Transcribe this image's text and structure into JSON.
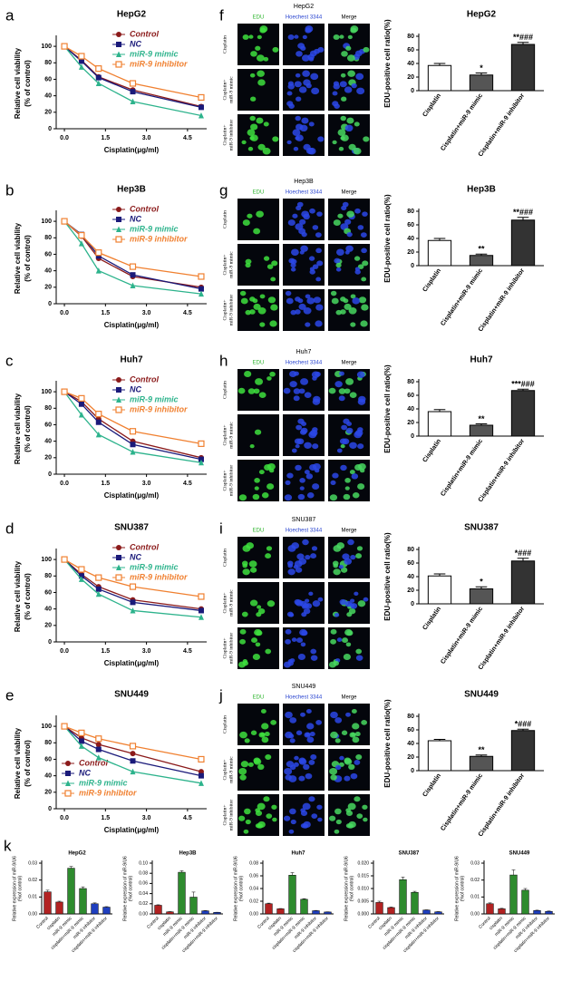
{
  "chart_data": [
    {
      "type": "line",
      "panel": "a",
      "title": "HepG2",
      "xlabel": "Cisplatin(μg/ml)",
      "ylabel": [
        "Relative cell viability",
        "(% of control)"
      ],
      "x": [
        0,
        0.625,
        1.25,
        2.5,
        5
      ],
      "xlim": [
        -0.3,
        5.2
      ],
      "xticks": [
        {
          "value": 0,
          "label": "0.0"
        },
        1.5,
        {
          "value": 3,
          "label": "3.0"
        },
        4.5
      ],
      "ylim": [
        0,
        110
      ],
      "yticks": [
        0,
        20,
        40,
        60,
        80,
        100
      ],
      "legend": "upper right",
      "series": [
        {
          "name": "Control",
          "color": "#8b1a1a",
          "marker": "circle",
          "values": [
            100,
            83,
            63,
            47,
            27
          ]
        },
        {
          "name": "NC",
          "color": "#1a1a7a",
          "marker": "square",
          "values": [
            100,
            82,
            62,
            45,
            26
          ]
        },
        {
          "name": "miR-9 mimic",
          "color": "#2db38c",
          "marker": "triangle",
          "values": [
            100,
            75,
            55,
            33,
            16
          ]
        },
        {
          "name": "miR-9 inhibitor",
          "color": "#f08030",
          "marker": "open-square",
          "values": [
            100,
            88,
            73,
            55,
            38
          ]
        }
      ]
    },
    {
      "type": "micrograph",
      "panel": "f",
      "title": "HepG2",
      "columns": [
        "EDU",
        "Hoechest 3344",
        "Merge"
      ],
      "rows": [
        [
          "Cisplatin"
        ],
        [
          "Cisplatin+",
          "miR-9 mimic"
        ],
        [
          "Cisplatin+",
          "miR-9 inhibitor"
        ]
      ]
    },
    {
      "type": "bar",
      "title": "HepG2",
      "ylabel": "EDU-positive cell ratio(%)",
      "categories": [
        "Cisplatin",
        "Cisplatin+miR-9 mimic",
        "Cisplatin+miR-9 inhibitor"
      ],
      "values": [
        37,
        23,
        68
      ],
      "errors": [
        3,
        3,
        3
      ],
      "annotations": [
        null,
        "*",
        "**###"
      ],
      "colors": [
        "#ffffff",
        "#555555",
        "#333333"
      ],
      "ylim": [
        0,
        80
      ],
      "yticks": [
        0,
        20,
        40,
        60,
        80
      ]
    },
    {
      "type": "line",
      "panel": "b",
      "title": "Hep3B",
      "xlabel": "Cisplatin(μg/ml)",
      "ylabel": [
        "Relative cell viability",
        "(% of control)"
      ],
      "x": [
        0,
        0.625,
        1.25,
        2.5,
        5
      ],
      "xlim": [
        -0.3,
        5.2
      ],
      "xticks": [
        {
          "value": 0,
          "label": "0.0"
        },
        1.5,
        {
          "value": 3,
          "label": "3.0"
        },
        4.5
      ],
      "ylim": [
        0,
        110
      ],
      "yticks": [
        0,
        20,
        40,
        60,
        80,
        100
      ],
      "legend": "upper right",
      "series": [
        {
          "name": "Control",
          "color": "#8b1a1a",
          "marker": "circle",
          "values": [
            100,
            82,
            55,
            33,
            20
          ]
        },
        {
          "name": "NC",
          "color": "#1a1a7a",
          "marker": "square",
          "values": [
            100,
            84,
            58,
            35,
            18
          ]
        },
        {
          "name": "miR-9 mimic",
          "color": "#2db38c",
          "marker": "triangle",
          "values": [
            100,
            73,
            40,
            22,
            12
          ]
        },
        {
          "name": "miR-9 inhibitor",
          "color": "#f08030",
          "marker": "open-square",
          "values": [
            100,
            83,
            62,
            45,
            33
          ]
        }
      ]
    },
    {
      "type": "micrograph",
      "panel": "g",
      "title": "Hep3B",
      "columns": [
        "EDU",
        "Hoechest 3344",
        "Merge"
      ],
      "rows": [
        [
          "Cisplatin"
        ],
        [
          "Cisplatin+",
          "miR-9 mimic"
        ],
        [
          "Cisplatin+",
          "miR-9 inhibitor"
        ]
      ]
    },
    {
      "type": "bar",
      "title": "Hep3B",
      "ylabel": "EDU-positive cell ratio(%)",
      "categories": [
        "Cisplatin",
        "Cisplatin+miR-9 mimic",
        "Cisplatin+miR-9 inhibitor"
      ],
      "values": [
        37,
        15,
        67
      ],
      "errors": [
        3,
        2,
        4
      ],
      "annotations": [
        null,
        "**",
        "**###"
      ],
      "colors": [
        "#ffffff",
        "#555555",
        "#333333"
      ],
      "ylim": [
        0,
        80
      ],
      "yticks": [
        0,
        20,
        40,
        60,
        80
      ]
    },
    {
      "type": "line",
      "panel": "c",
      "title": "Huh7",
      "xlabel": "Cisplatin(μg/ml)",
      "ylabel": [
        "Relative cell viability",
        "(% of control)"
      ],
      "x": [
        0,
        0.625,
        1.25,
        2.5,
        5
      ],
      "xlim": [
        -0.3,
        5.2
      ],
      "xticks": [
        {
          "value": 0,
          "label": "0.0"
        },
        1.5,
        {
          "value": 3,
          "label": "3.0"
        },
        4.5
      ],
      "ylim": [
        0,
        110
      ],
      "yticks": [
        0,
        20,
        40,
        60,
        80,
        100
      ],
      "legend": "upper right",
      "series": [
        {
          "name": "Control",
          "color": "#8b1a1a",
          "marker": "circle",
          "values": [
            100,
            88,
            67,
            40,
            20
          ]
        },
        {
          "name": "NC",
          "color": "#1a1a7a",
          "marker": "square",
          "values": [
            100,
            85,
            63,
            36,
            18
          ]
        },
        {
          "name": "miR-9 mimic",
          "color": "#2db38c",
          "marker": "triangle",
          "values": [
            100,
            72,
            48,
            27,
            14
          ]
        },
        {
          "name": "miR-9 inhibitor",
          "color": "#f08030",
          "marker": "open-square",
          "values": [
            100,
            92,
            73,
            52,
            37
          ]
        }
      ]
    },
    {
      "type": "micrograph",
      "panel": "h",
      "title": "Huh7",
      "columns": [
        "EDU",
        "Hoechest 3344",
        "Merge"
      ],
      "rows": [
        [
          "Cisplatin"
        ],
        [
          "Cisplatin+",
          "miR-9 mimic"
        ],
        [
          "Cisplatin+",
          "miR-9 inhibitor"
        ]
      ]
    },
    {
      "type": "bar",
      "title": "Huh7",
      "ylabel": "EDU-positive cell ratio(%)",
      "categories": [
        "Cisplatin",
        "Cisplatin+miR-9 mimic",
        "Cisplatin+miR-9 inhibitor"
      ],
      "values": [
        36,
        16,
        67
      ],
      "errors": [
        3,
        2,
        2
      ],
      "annotations": [
        null,
        "**",
        "***###"
      ],
      "colors": [
        "#ffffff",
        "#555555",
        "#333333"
      ],
      "ylim": [
        0,
        80
      ],
      "yticks": [
        0,
        20,
        40,
        60,
        80
      ]
    },
    {
      "type": "line",
      "panel": "d",
      "title": "SNU387",
      "xlabel": "Cisplatin(μg/ml)",
      "ylabel": [
        "Relative cell viability",
        "(% of control)"
      ],
      "x": [
        0,
        0.625,
        1.25,
        2.5,
        5
      ],
      "xlim": [
        -0.3,
        5.2
      ],
      "xticks": [
        {
          "value": 0,
          "label": "0.0"
        },
        1.5,
        {
          "value": 3,
          "label": "3.0"
        },
        4.5
      ],
      "ylim": [
        0,
        110
      ],
      "yticks": [
        0,
        20,
        40,
        60,
        80,
        100
      ],
      "legend": "upper right",
      "series": [
        {
          "name": "Control",
          "color": "#8b1a1a",
          "marker": "circle",
          "values": [
            100,
            82,
            67,
            51,
            40
          ]
        },
        {
          "name": "NC",
          "color": "#1a1a7a",
          "marker": "square",
          "values": [
            100,
            80,
            64,
            48,
            38
          ]
        },
        {
          "name": "miR-9 mimic",
          "color": "#2db38c",
          "marker": "triangle",
          "values": [
            100,
            76,
            58,
            38,
            30
          ]
        },
        {
          "name": "miR-9 inhibitor",
          "color": "#f08030",
          "marker": "open-square",
          "values": [
            100,
            88,
            78,
            67,
            55
          ]
        }
      ]
    },
    {
      "type": "micrograph",
      "panel": "i",
      "title": "SNU387",
      "columns": [
        "EDU",
        "Hoechest 3344",
        "Merge"
      ],
      "rows": [
        [
          "Cisplatin"
        ],
        [
          "Cisplatin+",
          "miR-9 mimic"
        ],
        [
          "Cisplatin+",
          "miR-9 inhibitor"
        ]
      ]
    },
    {
      "type": "bar",
      "title": "SNU387",
      "ylabel": "EDU-positive cell ratio(%)",
      "categories": [
        "Cisplatin",
        "Cisplatin+miR-9 mimic",
        "Cisplatin+miR-9 inhibitor"
      ],
      "values": [
        41,
        22,
        63
      ],
      "errors": [
        3,
        3,
        4
      ],
      "annotations": [
        null,
        "*",
        "*###"
      ],
      "colors": [
        "#ffffff",
        "#555555",
        "#333333"
      ],
      "ylim": [
        0,
        80
      ],
      "yticks": [
        0,
        20,
        40,
        60,
        80
      ]
    },
    {
      "type": "line",
      "panel": "e",
      "title": "SNU449",
      "xlabel": "Cisplatin(μg/ml)",
      "ylabel": [
        "Relative cell viability",
        "(% of control)"
      ],
      "x": [
        0,
        0.625,
        1.25,
        2.5,
        5
      ],
      "xlim": [
        -0.3,
        5.2
      ],
      "xticks": [
        {
          "value": 0,
          "label": "0.0"
        },
        1.5,
        {
          "value": 3,
          "label": "3.0"
        },
        4.5
      ],
      "ylim": [
        0,
        110
      ],
      "yticks": [
        0,
        20,
        40,
        60,
        80,
        100
      ],
      "legend": "lower left",
      "series": [
        {
          "name": "Control",
          "color": "#8b1a1a",
          "marker": "circle",
          "values": [
            100,
            86,
            78,
            67,
            45
          ]
        },
        {
          "name": "NC",
          "color": "#1a1a7a",
          "marker": "square",
          "values": [
            100,
            82,
            72,
            58,
            40
          ]
        },
        {
          "name": "miR-9 mimic",
          "color": "#2db38c",
          "marker": "triangle",
          "values": [
            100,
            76,
            62,
            45,
            31
          ]
        },
        {
          "name": "miR-9 inhibitor",
          "color": "#f08030",
          "marker": "open-square",
          "values": [
            100,
            92,
            85,
            76,
            60
          ]
        }
      ]
    },
    {
      "type": "micrograph",
      "panel": "j",
      "title": "SNU449",
      "columns": [
        "EDU",
        "Hoechest 3344",
        "Merge"
      ],
      "rows": [
        [
          "Cisplatin"
        ],
        [
          "Cisplatin+",
          "miR-9 mimic"
        ],
        [
          "Cisplatin+",
          "miR-9 inhibitor"
        ]
      ]
    },
    {
      "type": "bar",
      "title": "SNU449",
      "ylabel": "EDU-positive cell ratio(%)",
      "categories": [
        "Cisplatin",
        "Cisplatin+miR-9 mimic",
        "Cisplatin+miR-9 inhibitor"
      ],
      "values": [
        44,
        21,
        59
      ],
      "errors": [
        2,
        2,
        2
      ],
      "annotations": [
        null,
        "**",
        "*###"
      ],
      "colors": [
        "#ffffff",
        "#555555",
        "#333333"
      ],
      "ylim": [
        0,
        80
      ],
      "yticks": [
        0,
        20,
        40,
        60,
        80
      ]
    },
    {
      "type": "bar",
      "panel": "k",
      "title": "HepG2",
      "ylabel": [
        "Relative expression of miR-9/U6",
        "(%of control)"
      ],
      "categories": [
        "Control",
        "cisplatin",
        "miR-9 mimic",
        "cisplatin+miR-9 mimic",
        "miR-9 inhibitor",
        "cisplatin+miR-9 inhibitor"
      ],
      "values": [
        0.013,
        0.007,
        0.027,
        0.015,
        0.006,
        0.004
      ],
      "errors": [
        0.001,
        0.0005,
        0.001,
        0.001,
        0.0005,
        0.0003
      ],
      "colors": [
        "#b22222",
        "#b22222",
        "#2e8b2e",
        "#2e8b2e",
        "#1f3fbf",
        "#1f3fbf"
      ],
      "ylim": [
        0,
        0.03
      ],
      "yticks": [
        {
          "value": 0,
          "label": "0.00"
        },
        0.01,
        0.02,
        0.03
      ]
    },
    {
      "type": "bar",
      "title": "Hep3B",
      "ylabel": [
        "Relative expression of miR-9/U6",
        "(%of control)"
      ],
      "categories": [
        "Control",
        "cisplatin",
        "miR-9 mimic",
        "cisplatin+miR-9 mimic",
        "miR-9 inhibitor",
        "cisplatin+miR-9 inhibitor"
      ],
      "values": [
        0.017,
        0.004,
        0.082,
        0.033,
        0.006,
        0.003
      ],
      "errors": [
        0.001,
        0.0005,
        0.003,
        0.01,
        0.0005,
        0.0003
      ],
      "colors": [
        "#b22222",
        "#b22222",
        "#2e8b2e",
        "#2e8b2e",
        "#1f3fbf",
        "#1f3fbf"
      ],
      "ylim": [
        0,
        0.1
      ],
      "yticks": [
        {
          "value": 0,
          "label": "0.00"
        },
        0.02,
        0.04,
        0.06,
        0.08,
        {
          "value": 0.1,
          "label": "0.10"
        }
      ]
    },
    {
      "type": "bar",
      "title": "Huh7",
      "ylabel": [
        "Relative expression of miR-9/U6",
        "(%of control)"
      ],
      "categories": [
        "Control",
        "cisplatin",
        "miR-9 mimic",
        "cisplatin+miR-9 mimic",
        "miR-9 inhibitor",
        "cisplatin+miR-9 inhibitor"
      ],
      "values": [
        0.016,
        0.008,
        0.061,
        0.023,
        0.005,
        0.003
      ],
      "errors": [
        0.001,
        0.0005,
        0.004,
        0.001,
        0.0005,
        0.0003
      ],
      "colors": [
        "#b22222",
        "#b22222",
        "#2e8b2e",
        "#2e8b2e",
        "#1f3fbf",
        "#1f3fbf"
      ],
      "ylim": [
        0,
        0.08
      ],
      "yticks": [
        {
          "value": 0,
          "label": "0.00"
        },
        0.02,
        0.04,
        0.06,
        0.08
      ]
    },
    {
      "type": "bar",
      "title": "SNU387",
      "ylabel": [
        "Relative expression of miR-9/U6",
        "(%of control)"
      ],
      "categories": [
        "Control",
        "cisplatin",
        "miR-9 mimic",
        "cisplatin+miR-9 mimic",
        "miR-9 inhibitor",
        "cisplatin+miR-9 inhibitor"
      ],
      "values": [
        0.0045,
        0.0025,
        0.0135,
        0.0085,
        0.0015,
        0.0008
      ],
      "errors": [
        0.0005,
        0.0002,
        0.001,
        0.0004,
        0.0001,
        0.0001
      ],
      "colors": [
        "#b22222",
        "#b22222",
        "#2e8b2e",
        "#2e8b2e",
        "#1f3fbf",
        "#1f3fbf"
      ],
      "ylim": [
        0,
        0.02
      ],
      "yticks": [
        {
          "value": 0,
          "label": "0.000"
        },
        0.005,
        {
          "value": 0.01,
          "label": "0.010"
        },
        0.015,
        {
          "value": 0.02,
          "label": "0.020"
        }
      ]
    },
    {
      "type": "bar",
      "title": "SNU449",
      "ylabel": [
        "Relative expression of miR-9/U6",
        "(%of control)"
      ],
      "categories": [
        "Control",
        "cisplatin",
        "miR-9 mimic",
        "cisplatin+miR-9 mimic",
        "miR-9 inhibitor",
        "cisplatin+miR-9 inhibitor"
      ],
      "values": [
        0.006,
        0.003,
        0.023,
        0.014,
        0.002,
        0.0015
      ],
      "errors": [
        0.0005,
        0.0003,
        0.003,
        0.001,
        0.0002,
        0.0002
      ],
      "colors": [
        "#b22222",
        "#b22222",
        "#2e8b2e",
        "#2e8b2e",
        "#1f3fbf",
        "#1f3fbf"
      ],
      "ylim": [
        0,
        0.03
      ],
      "yticks": [
        {
          "value": 0,
          "label": "0.00"
        },
        0.01,
        0.02,
        0.03
      ]
    }
  ]
}
